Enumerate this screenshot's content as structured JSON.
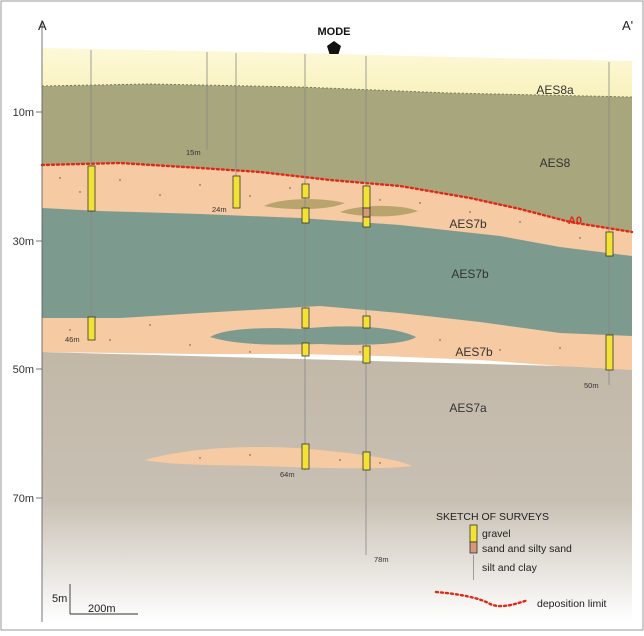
{
  "section": {
    "left_end": "A",
    "right_end": "A'",
    "marker_label": "MODE"
  },
  "depth_axis": {
    "ticks": [
      "10m",
      "30m",
      "50m",
      "70m"
    ]
  },
  "units": {
    "aes8a": "AES8a",
    "aes8": "AES8",
    "aes7b_upper": "AES7b",
    "aes7b_middle": "AES7b",
    "aes7b_lower": "AES7b",
    "aes7a": "AES7a"
  },
  "surface": {
    "label": "A0",
    "color": "#e02818"
  },
  "survey_depths": [
    "15m",
    "24m",
    "46m",
    "50m",
    "64m",
    "78m"
  ],
  "legend": {
    "title": "SKETCH OF SURVEYS",
    "gravel": "gravel",
    "sand": "sand and silty sand",
    "silt": "silt and clay",
    "limit": "deposition limit"
  },
  "scale": {
    "vertical": "5m",
    "horizontal": "200m"
  },
  "colors": {
    "aes8a": "#fbf6c8",
    "aes8": "#a8a67c",
    "aes7b_sand": "#f6caa3",
    "aes7b_clay": "#7d9a8f",
    "aes7a": "#c2b8a8",
    "gravel": "#f2e234",
    "sand_log": "#d9977a"
  }
}
